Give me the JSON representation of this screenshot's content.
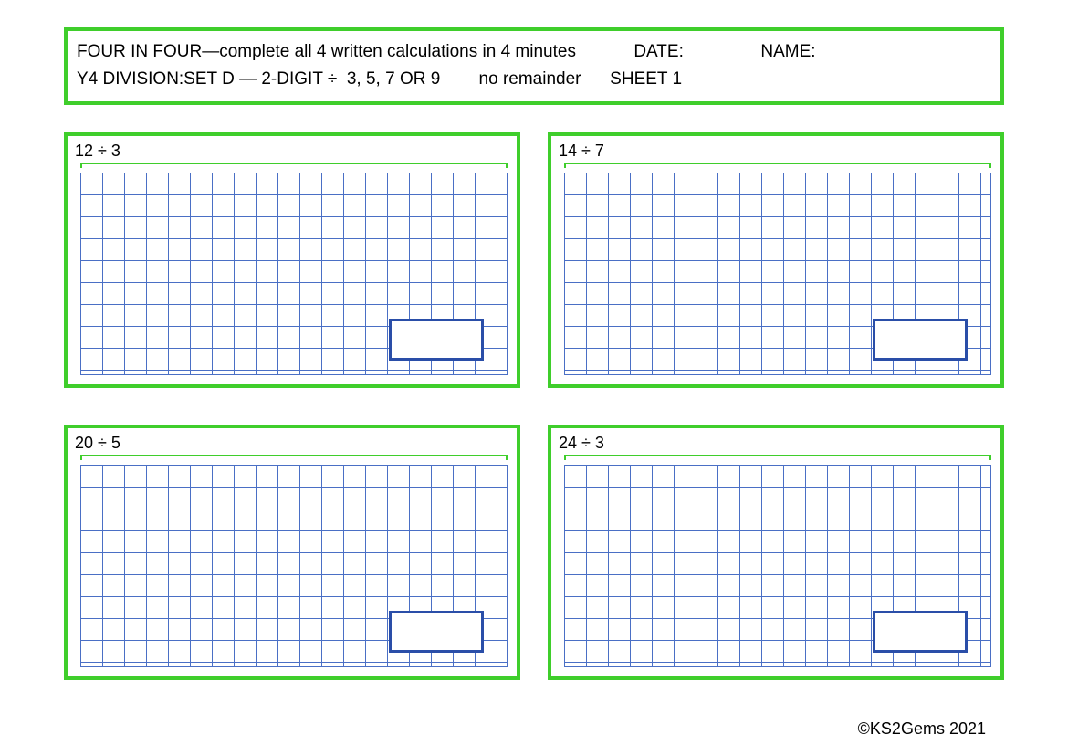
{
  "colors": {
    "border_green": "#3fce2b",
    "grid_blue": "#4a6fc5",
    "answer_border": "#2a4ea8",
    "text": "#000000"
  },
  "grid": {
    "cell_size": 24
  },
  "header": {
    "line1_main": "FOUR IN FOUR—complete all 4 written calculations in 4 minutes",
    "line1_date": "DATE:",
    "line1_name": "NAME:",
    "line2_a": "Y4 DIVISION:SET D — 2-DIGIT ÷  3, 5, 7 OR 9",
    "line2_b": "no remainder",
    "line2_c": "SHEET 1"
  },
  "problems": [
    {
      "label": "12 ÷ 3"
    },
    {
      "label": "14 ÷ 7"
    },
    {
      "label": "20 ÷ 5"
    },
    {
      "label": "24 ÷ 3"
    }
  ],
  "footer": "©KS2Gems 2021"
}
